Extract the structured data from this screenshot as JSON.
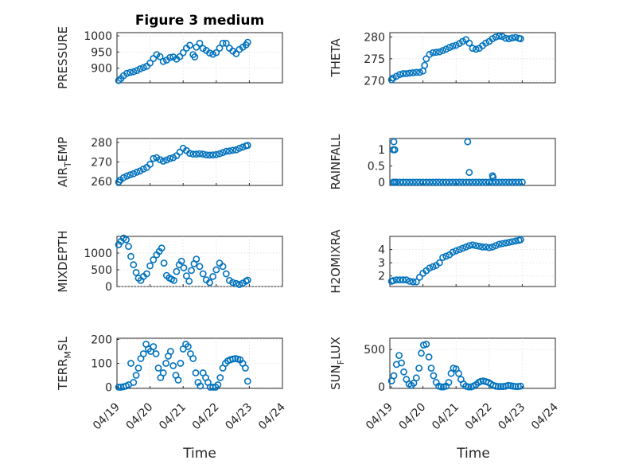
{
  "figure": {
    "title": "Figure 3 medium",
    "xlabel": "Time",
    "marker_color": "#0072BD",
    "x_ticks": [
      "04/19",
      "04/20",
      "04/21",
      "04/22",
      "04/23",
      "04/24"
    ]
  },
  "chart_data": [
    {
      "type": "scatter",
      "name": "pressure",
      "ylabel": "PRESSURE",
      "ylabel_sub": "",
      "ylabel_after": "",
      "ylim": [
        855,
        1010
      ],
      "yticks": [
        900,
        950,
        1000
      ],
      "xlim": [
        0,
        5
      ],
      "grid": true,
      "x": [
        0.05,
        0.12,
        0.2,
        0.3,
        0.4,
        0.5,
        0.6,
        0.7,
        0.8,
        0.9,
        1.0,
        1.1,
        1.2,
        1.3,
        1.4,
        1.5,
        1.6,
        1.7,
        1.8,
        1.9,
        2.0,
        2.1,
        2.2,
        2.3,
        2.35,
        2.4,
        2.5,
        2.6,
        2.7,
        2.8,
        2.9,
        3.0,
        3.1,
        3.2,
        3.3,
        3.4,
        3.5,
        3.6,
        3.7,
        3.8,
        3.9,
        3.95
      ],
      "y": [
        862,
        868,
        877,
        884,
        887,
        889,
        893,
        898,
        902,
        906,
        916,
        930,
        942,
        936,
        921,
        925,
        933,
        935,
        928,
        936,
        948,
        962,
        971,
        942,
        935,
        965,
        977,
        961,
        955,
        947,
        943,
        948,
        962,
        977,
        977,
        962,
        953,
        945,
        958,
        965,
        972,
        980
      ]
    },
    {
      "type": "scatter",
      "name": "theta",
      "ylabel": "THETA",
      "ylabel_sub": "",
      "ylabel_after": "",
      "ylim": [
        269.5,
        281
      ],
      "yticks": [
        270,
        275,
        280
      ],
      "xlim": [
        0,
        5
      ],
      "grid": true,
      "x": [
        0.05,
        0.1,
        0.2,
        0.3,
        0.4,
        0.5,
        0.6,
        0.7,
        0.8,
        0.9,
        1.0,
        1.05,
        1.1,
        1.2,
        1.3,
        1.4,
        1.5,
        1.6,
        1.7,
        1.8,
        1.9,
        2.0,
        2.1,
        2.2,
        2.3,
        2.4,
        2.5,
        2.6,
        2.7,
        2.8,
        2.9,
        3.0,
        3.1,
        3.2,
        3.3,
        3.4,
        3.5,
        3.6,
        3.7,
        3.8,
        3.9,
        3.95
      ],
      "y": [
        270.2,
        270.6,
        271,
        271.4,
        271.6,
        271.6,
        271.7,
        271.8,
        271.9,
        271.9,
        272.2,
        273.5,
        275,
        276,
        276.4,
        276.5,
        276.6,
        276.9,
        277.2,
        277.6,
        277.9,
        278.1,
        278.5,
        279,
        279.4,
        278.6,
        277.4,
        277.2,
        277.4,
        278,
        278.6,
        279,
        279.6,
        280,
        280.2,
        280.1,
        279.7,
        279.6,
        279.8,
        279.9,
        279.7,
        279.6
      ]
    },
    {
      "type": "scatter",
      "name": "air_temp",
      "ylabel": "AIR",
      "ylabel_sub": "T",
      "ylabel_after": "EMP",
      "ylim": [
        258,
        282
      ],
      "yticks": [
        260,
        270,
        280
      ],
      "xlim": [
        0,
        5
      ],
      "grid": true,
      "x": [
        0.05,
        0.1,
        0.2,
        0.3,
        0.4,
        0.5,
        0.6,
        0.7,
        0.8,
        0.9,
        1.0,
        1.1,
        1.2,
        1.3,
        1.4,
        1.5,
        1.6,
        1.7,
        1.8,
        1.9,
        2.0,
        2.1,
        2.2,
        2.3,
        2.4,
        2.5,
        2.6,
        2.7,
        2.8,
        2.9,
        3.0,
        3.1,
        3.2,
        3.3,
        3.4,
        3.5,
        3.6,
        3.7,
        3.8,
        3.9,
        3.95
      ],
      "y": [
        259.8,
        260.8,
        262,
        262.8,
        263.4,
        264,
        264.8,
        265.4,
        266.4,
        267.2,
        268.8,
        271.8,
        272.2,
        271.2,
        270.4,
        271,
        271.8,
        272.2,
        273.2,
        275,
        277,
        275.8,
        274.4,
        274,
        274,
        274.2,
        274,
        273.6,
        273.5,
        273.6,
        273.8,
        274.2,
        274.8,
        275.4,
        275.6,
        276,
        276.2,
        277,
        277.6,
        278.2,
        278.5
      ]
    },
    {
      "type": "scatter",
      "name": "rainfall",
      "ylabel": "RAINFALL",
      "ylabel_sub": "",
      "ylabel_after": "",
      "ylim": [
        -0.1,
        1.35
      ],
      "yticks": [
        0,
        0.5,
        1
      ],
      "xlim": [
        0,
        5
      ],
      "grid": false,
      "x": [
        0.1,
        0.15,
        0.2,
        0.3,
        0.4,
        0.5,
        0.6,
        0.7,
        0.8,
        0.9,
        1.0,
        1.1,
        1.2,
        1.3,
        1.4,
        1.5,
        1.6,
        1.7,
        1.8,
        1.9,
        2.0,
        2.1,
        2.2,
        2.3,
        2.4,
        2.5,
        2.6,
        2.7,
        2.8,
        2.9,
        3.0,
        3.1,
        3.2,
        3.3,
        3.4,
        3.5,
        3.6,
        3.7,
        3.8,
        3.9,
        4.0,
        0.1,
        0.15,
        0.12,
        2.35,
        2.4,
        3.1,
        3.12
      ],
      "y": [
        0,
        0,
        0,
        0,
        0,
        0,
        0,
        0,
        0,
        0,
        0,
        0,
        0,
        0,
        0,
        0,
        0,
        0,
        0,
        0,
        0,
        0,
        0,
        0,
        0,
        0,
        0,
        0,
        0,
        0,
        0,
        0,
        0,
        0,
        0,
        0,
        0,
        0,
        0,
        0,
        0,
        1,
        1,
        1.25,
        1.25,
        0.3,
        0.2,
        0.15
      ]
    },
    {
      "type": "scatter",
      "name": "mixdepth",
      "ylabel": "MIXDEPTH",
      "ylabel_sub": "",
      "ylabel_after": "",
      "ylim": [
        0,
        1500
      ],
      "yticks": [
        0,
        500,
        1000
      ],
      "xlim": [
        0,
        5
      ],
      "grid": true,
      "x": [
        0.05,
        0.12,
        0.2,
        0.28,
        0.35,
        0.42,
        0.5,
        0.58,
        0.65,
        0.72,
        0.8,
        0.9,
        1.0,
        1.1,
        1.2,
        1.28,
        1.35,
        1.42,
        1.5,
        1.58,
        1.65,
        1.72,
        1.8,
        1.88,
        1.95,
        2.02,
        2.1,
        2.18,
        2.25,
        2.33,
        2.4,
        2.5,
        2.6,
        2.7,
        2.8,
        2.9,
        3.0,
        3.1,
        3.2,
        3.3,
        3.4,
        3.5,
        3.6,
        3.7,
        3.8,
        3.9,
        3.95
      ],
      "y": [
        1250,
        1350,
        1450,
        1400,
        1200,
        900,
        650,
        420,
        250,
        180,
        300,
        380,
        620,
        800,
        950,
        1050,
        1150,
        700,
        330,
        260,
        220,
        180,
        450,
        650,
        760,
        560,
        320,
        160,
        480,
        680,
        820,
        600,
        380,
        200,
        120,
        300,
        500,
        700,
        600,
        380,
        180,
        120,
        90,
        60,
        100,
        160,
        190
      ]
    },
    {
      "type": "scatter",
      "name": "h2omixra",
      "ylabel": "H2OMIXRA",
      "ylabel_sub": "",
      "ylabel_after": "",
      "ylim": [
        1.2,
        5
      ],
      "yticks": [
        2,
        3,
        4
      ],
      "xlim": [
        0,
        5
      ],
      "grid": true,
      "x": [
        0.05,
        0.1,
        0.2,
        0.3,
        0.4,
        0.5,
        0.6,
        0.7,
        0.8,
        0.9,
        1.0,
        1.1,
        1.2,
        1.3,
        1.4,
        1.5,
        1.6,
        1.7,
        1.8,
        1.9,
        2.0,
        2.1,
        2.2,
        2.3,
        2.4,
        2.5,
        2.6,
        2.7,
        2.8,
        2.9,
        3.0,
        3.1,
        3.2,
        3.3,
        3.4,
        3.5,
        3.6,
        3.7,
        3.8,
        3.9,
        3.95
      ],
      "y": [
        1.6,
        1.65,
        1.7,
        1.7,
        1.7,
        1.7,
        1.6,
        1.55,
        1.55,
        1.9,
        2.2,
        2.4,
        2.6,
        2.7,
        2.8,
        3,
        3.4,
        3.5,
        3.6,
        3.8,
        3.9,
        4,
        4.1,
        4.2,
        4.3,
        4.35,
        4.3,
        4.25,
        4.2,
        4.2,
        4.15,
        4.2,
        4.3,
        4.4,
        4.45,
        4.5,
        4.55,
        4.6,
        4.65,
        4.7,
        4.75
      ]
    },
    {
      "type": "scatter",
      "name": "terr_msl",
      "ylabel": "TERR",
      "ylabel_sub": "M",
      "ylabel_after": "SL",
      "ylim": [
        -5,
        205
      ],
      "yticks": [
        0,
        100,
        200
      ],
      "xlim": [
        0,
        5
      ],
      "grid": true,
      "x": [
        0.05,
        0.12,
        0.2,
        0.28,
        0.35,
        0.42,
        0.5,
        0.58,
        0.65,
        0.72,
        0.8,
        0.88,
        0.95,
        1.02,
        1.1,
        1.18,
        1.25,
        1.32,
        1.4,
        1.48,
        1.55,
        1.62,
        1.7,
        1.78,
        1.85,
        1.92,
        2.0,
        2.08,
        2.15,
        2.22,
        2.3,
        2.38,
        2.45,
        2.52,
        2.6,
        2.68,
        2.75,
        2.82,
        2.9,
        2.98,
        3.05,
        3.12,
        3.2,
        3.28,
        3.35,
        3.42,
        3.5,
        3.58,
        3.65,
        3.72,
        3.8,
        3.88,
        3.95
      ],
      "y": [
        0,
        0,
        2,
        5,
        10,
        100,
        20,
        50,
        80,
        120,
        140,
        180,
        160,
        150,
        170,
        140,
        80,
        40,
        60,
        100,
        130,
        150,
        90,
        50,
        30,
        100,
        160,
        180,
        170,
        140,
        120,
        60,
        20,
        5,
        60,
        40,
        20,
        0,
        0,
        0,
        10,
        40,
        80,
        100,
        110,
        115,
        118,
        120,
        118,
        115,
        100,
        80,
        25
      ]
    },
    {
      "type": "scatter",
      "name": "sun_flux",
      "ylabel": "SUN",
      "ylabel_sub": "F",
      "ylabel_after": "LUX",
      "ylim": [
        -20,
        650
      ],
      "yticks": [
        0,
        500
      ],
      "xlim": [
        0,
        5
      ],
      "grid": true,
      "x": [
        0.05,
        0.12,
        0.2,
        0.28,
        0.35,
        0.42,
        0.5,
        0.58,
        0.65,
        0.72,
        0.8,
        0.88,
        0.95,
        1.02,
        1.1,
        1.18,
        1.25,
        1.32,
        1.4,
        1.48,
        1.55,
        1.62,
        1.7,
        1.78,
        1.85,
        1.92,
        2.0,
        2.08,
        2.15,
        2.22,
        2.3,
        2.38,
        2.45,
        2.52,
        2.6,
        2.68,
        2.75,
        2.82,
        2.9,
        2.98,
        3.05,
        3.12,
        3.2,
        3.28,
        3.35,
        3.42,
        3.5,
        3.58,
        3.65,
        3.72,
        3.8,
        3.88,
        3.95
      ],
      "y": [
        80,
        150,
        300,
        420,
        320,
        200,
        100,
        40,
        20,
        50,
        120,
        250,
        450,
        560,
        570,
        400,
        250,
        150,
        60,
        10,
        0,
        0,
        10,
        60,
        180,
        250,
        240,
        180,
        100,
        40,
        10,
        0,
        0,
        10,
        30,
        60,
        75,
        80,
        70,
        60,
        40,
        20,
        10,
        5,
        5,
        5,
        10,
        20,
        15,
        10,
        5,
        5,
        10
      ]
    }
  ]
}
